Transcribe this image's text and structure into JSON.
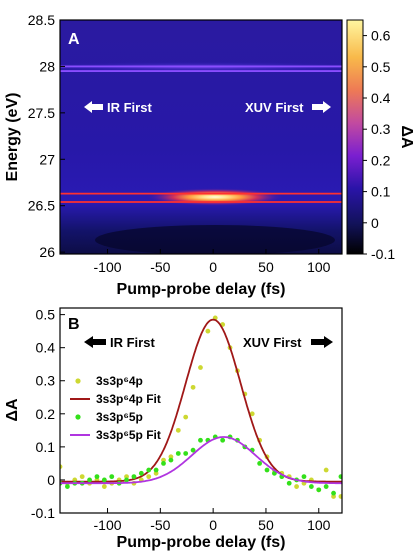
{
  "chart_data": [
    {
      "panel": "A",
      "type": "heatmap",
      "xlabel": "Pump-probe delay (fs)",
      "ylabel": "Energy (eV)",
      "colorbar_label": "ΔA",
      "xlim": [
        -145,
        122
      ],
      "ylim": [
        25.98,
        28.5
      ],
      "xticks": [
        -100,
        -50,
        0,
        50,
        100
      ],
      "xtick_labels": [
        "-100",
        "-50",
        "0",
        "50",
        "100"
      ],
      "yticks": [
        26,
        26.5,
        27,
        27.5,
        28,
        28.5
      ],
      "ytick_labels": [
        "26",
        "26.5",
        "27",
        "27.5",
        "28",
        "28.5"
      ],
      "clim": [
        -0.1,
        0.65
      ],
      "cticks": [
        -0.1,
        0,
        0.1,
        0.2,
        0.3,
        0.4,
        0.5,
        0.6
      ],
      "ctick_labels": [
        "-0.1",
        "0",
        "0.1",
        "0.2",
        "0.3",
        "0.4",
        "0.5",
        "0.6"
      ],
      "features": [
        {
          "energy_ev": 26.59,
          "delay_fs": 5,
          "peak_dA": 0.62
        },
        {
          "energy_ev": 27.98,
          "peak_dA": 0.05
        }
      ],
      "guide_lines": [
        {
          "energy_ev": 28.0,
          "color": "#8a4dff"
        },
        {
          "energy_ev": 27.95,
          "color": "#8a4dff"
        },
        {
          "energy_ev": 26.63,
          "color": "#ff3030"
        },
        {
          "energy_ev": 26.54,
          "color": "#ff3030"
        }
      ],
      "annotations": {
        "left": "IR First",
        "right": "XUV First"
      }
    },
    {
      "panel": "B",
      "type": "scatter",
      "xlabel": "Pump-probe delay (fs)",
      "ylabel": "ΔA",
      "xlim": [
        -145,
        122
      ],
      "ylim": [
        -0.1,
        0.52
      ],
      "xticks": [
        -100,
        -50,
        0,
        50,
        100
      ],
      "xtick_labels": [
        "-100",
        "-50",
        "0",
        "50",
        "100"
      ],
      "yticks": [
        -0.1,
        0,
        0.1,
        0.2,
        0.3,
        0.4,
        0.5
      ],
      "ytick_labels": [
        "-0.1",
        "0",
        "0.1",
        "0.2",
        "0.3",
        "0.4",
        "0.5"
      ],
      "annotations": {
        "left": "IR First",
        "right": "XUV First"
      },
      "legend_position": "left",
      "series": [
        {
          "name": "3s3p⁶4p",
          "kind": "points",
          "color": "#cdd832",
          "x": [
            -145,
            -138,
            -131,
            -124,
            -117,
            -110,
            -103,
            -96,
            -89,
            -82,
            -75,
            -68,
            -61,
            -54,
            -47,
            -40,
            -33,
            -26,
            -19,
            -12,
            -5,
            2,
            9,
            16,
            23,
            30,
            37,
            44,
            51,
            58,
            65,
            72,
            79,
            86,
            93,
            100,
            107,
            114,
            121
          ],
          "y": [
            0.04,
            -0.01,
            0.0,
            0.01,
            -0.01,
            0.0,
            -0.02,
            -0.01,
            0.0,
            0.01,
            -0.01,
            0.0,
            0.01,
            0.02,
            0.06,
            0.07,
            0.15,
            0.19,
            0.28,
            0.34,
            0.45,
            0.49,
            0.47,
            0.4,
            0.33,
            0.26,
            0.2,
            0.12,
            0.07,
            0.03,
            0.02,
            0.01,
            -0.02,
            -0.01,
            0.0,
            -0.03,
            0.03,
            -0.05,
            -0.05
          ]
        },
        {
          "name": "3s3p⁶4p Fit",
          "kind": "line",
          "color": "#a01818",
          "amplitude": 0.49,
          "center_fs": 0,
          "sigma_fs": 26,
          "offset": -0.005
        },
        {
          "name": "3s3p⁶5p",
          "kind": "points",
          "color": "#33e01a",
          "x": [
            -145,
            -138,
            -131,
            -124,
            -117,
            -110,
            -103,
            -96,
            -89,
            -82,
            -75,
            -68,
            -61,
            -54,
            -47,
            -40,
            -33,
            -26,
            -19,
            -12,
            -5,
            2,
            9,
            16,
            23,
            30,
            37,
            44,
            51,
            58,
            65,
            72,
            79,
            86,
            93,
            100,
            107,
            114,
            121
          ],
          "y": [
            -0.01,
            -0.02,
            -0.01,
            -0.01,
            0.0,
            0.01,
            0.0,
            0.01,
            -0.01,
            0.0,
            0.01,
            0.02,
            0.03,
            0.03,
            0.05,
            0.06,
            0.08,
            0.08,
            0.09,
            0.12,
            0.12,
            0.13,
            0.12,
            0.13,
            0.12,
            0.1,
            0.09,
            0.05,
            0.03,
            0.02,
            0.01,
            -0.01,
            0.0,
            0.01,
            -0.02,
            -0.03,
            -0.02,
            -0.04,
            0.01
          ]
        },
        {
          "name": "3s3p⁶5p Fit",
          "kind": "line",
          "color": "#b035e0",
          "amplitude": 0.14,
          "center_fs": 10,
          "sigma_fs": 30,
          "offset": -0.01
        }
      ]
    }
  ],
  "legend_labels": {
    "s1": "3s3p⁶4p",
    "s2": "3s3p⁶4p Fit",
    "s3": "3s3p⁶5p",
    "s4": "3s3p⁶5p Fit"
  }
}
